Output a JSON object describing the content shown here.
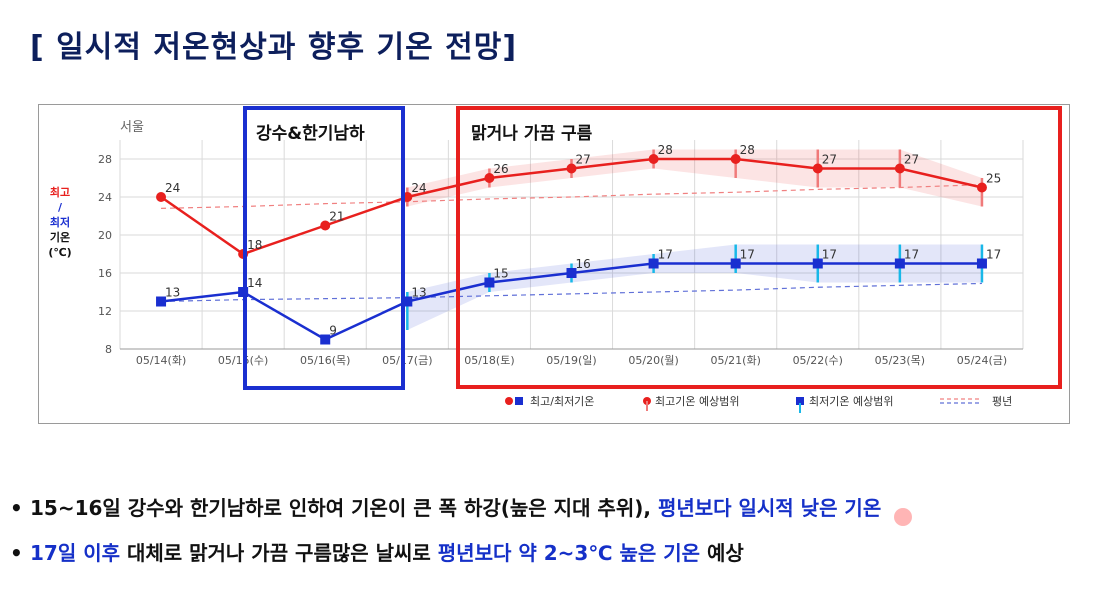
{
  "slide": {
    "title": "[ 일시적 저온현상과 향후 기온 전망]"
  },
  "chart_data": {
    "type": "line",
    "location_label": "서울",
    "ylabel_parts": [
      "최고",
      "/",
      "최저",
      "기온",
      "(℃)"
    ],
    "ylim": [
      8,
      30
    ],
    "yticks": [
      8,
      12,
      16,
      20,
      24,
      28
    ],
    "categories": [
      "05/14(화)",
      "05/15(수)",
      "05/16(목)",
      "05/17(금)",
      "05/18(토)",
      "05/19(일)",
      "05/20(월)",
      "05/21(화)",
      "05/22(수)",
      "05/23(목)",
      "05/24(금)"
    ],
    "series": [
      {
        "name": "최고/최저기온",
        "role": "max",
        "color": "#e8201e",
        "values": [
          24,
          18,
          21,
          24,
          26,
          27,
          28,
          28,
          27,
          27,
          25
        ]
      },
      {
        "name": "최고/최저기온",
        "role": "min",
        "color": "#1a2fd0",
        "values": [
          13,
          14,
          9,
          13,
          15,
          16,
          17,
          17,
          17,
          17,
          17
        ]
      }
    ],
    "max_range": [
      null,
      null,
      null,
      [
        23,
        25
      ],
      [
        25,
        27
      ],
      [
        26,
        28
      ],
      [
        27,
        29
      ],
      [
        26,
        29
      ],
      [
        25,
        29
      ],
      [
        25,
        29
      ],
      [
        23,
        26
      ]
    ],
    "min_range": [
      null,
      null,
      null,
      [
        10,
        14
      ],
      [
        14,
        16
      ],
      [
        15,
        17
      ],
      [
        16,
        18
      ],
      [
        16,
        19
      ],
      [
        15,
        19
      ],
      [
        15,
        19
      ],
      [
        15,
        19
      ]
    ],
    "normal_max": [
      22.8,
      23.0,
      23.3,
      23.5,
      23.8,
      24.0,
      24.3,
      24.5,
      24.8,
      25.0,
      25.3
    ],
    "normal_min": [
      13.0,
      13.2,
      13.3,
      13.4,
      13.6,
      13.8,
      14.0,
      14.2,
      14.5,
      14.7,
      14.9
    ],
    "annotations": [
      {
        "text": "강수&한기남하",
        "color": "#1a2fd0"
      },
      {
        "text": "맑거나 가끔 구름",
        "color": "#e8201e"
      }
    ],
    "legend": {
      "placement": "bottom-right",
      "items": [
        "최고/최저기온",
        "최고기온 예상범위",
        "최저기온 예상범위",
        "평년"
      ]
    },
    "grid": true
  },
  "bullets": [
    {
      "dot": "•",
      "segments": [
        {
          "text": "15~16일 강수와 한기남하로 인하여 기온이 큰 폭 하강(높은 지대 추위), ",
          "hl": false
        },
        {
          "text": "평년보다 일시적 낮은 기온",
          "hl": true
        }
      ]
    },
    {
      "dot": "•",
      "segments": [
        {
          "text": "17일 이후",
          "hl": true
        },
        {
          "text": " 대체로 맑거나 가끔 구름많은 날씨로 ",
          "hl": false
        },
        {
          "text": "평년보다 약 2~3℃ 높은 기온",
          "hl": true
        },
        {
          "text": " 예상",
          "hl": false
        }
      ]
    }
  ]
}
